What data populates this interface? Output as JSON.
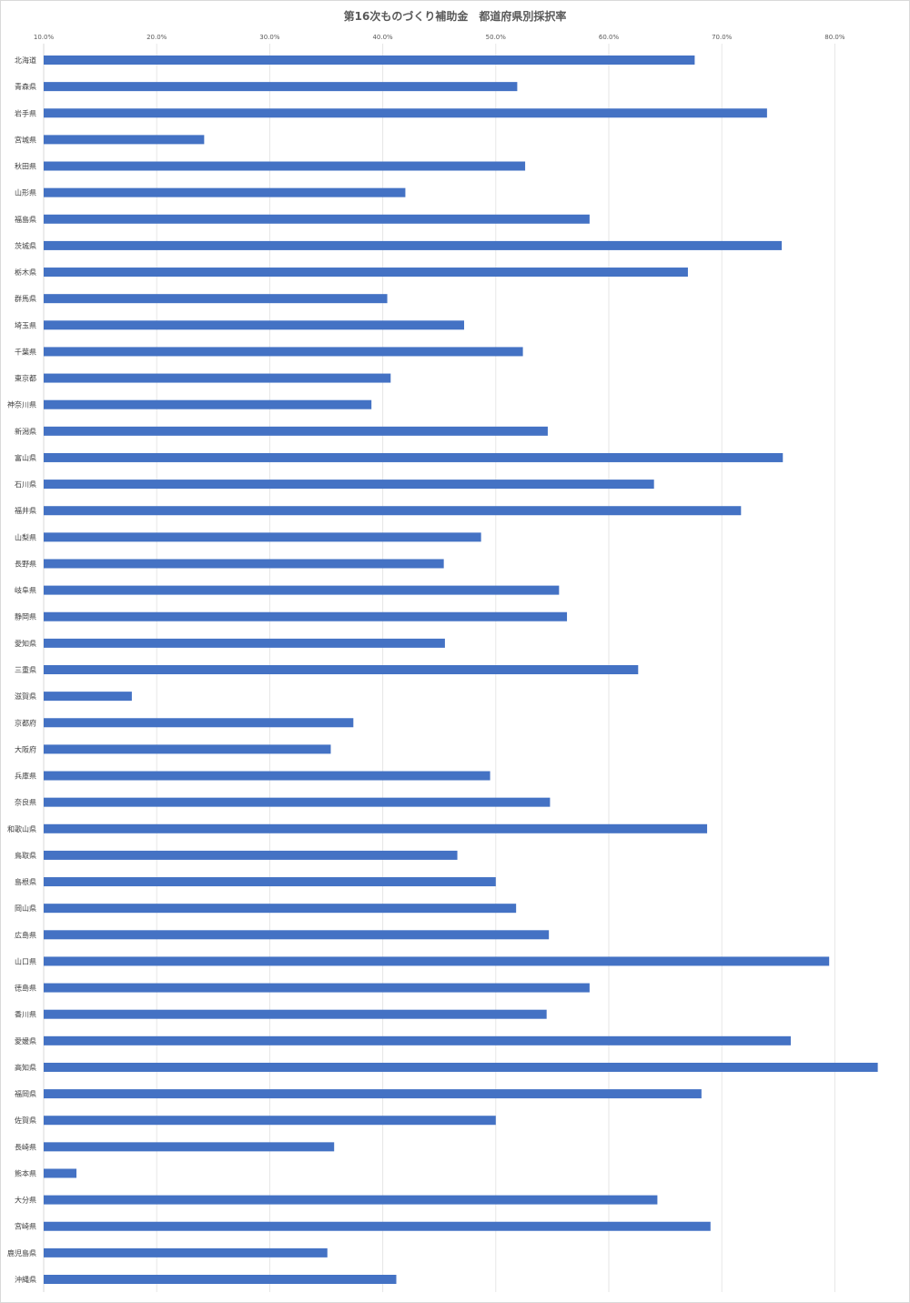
{
  "chart_data": {
    "type": "bar",
    "orientation": "horizontal",
    "title": "第16次ものづくり補助金　都道府県別採択率",
    "xlabel": "",
    "ylabel": "",
    "xlim": [
      10,
      83.8
    ],
    "x_ticks": [
      "10.0%",
      "20.0%",
      "30.0%",
      "40.0%",
      "50.0%",
      "60.0%",
      "70.0%",
      "80.0%"
    ],
    "x_tick_values": [
      10,
      20,
      30,
      40,
      50,
      60,
      70,
      80
    ],
    "grid": "vertical",
    "legend": "none",
    "bar_color": "#4472C4",
    "categories": [
      "北海道",
      "青森県",
      "岩手県",
      "宮城県",
      "秋田県",
      "山形県",
      "福島県",
      "茨城県",
      "栃木県",
      "群馬県",
      "埼玉県",
      "千葉県",
      "東京都",
      "神奈川県",
      "新潟県",
      "富山県",
      "石川県",
      "福井県",
      "山梨県",
      "長野県",
      "岐阜県",
      "静岡県",
      "愛知県",
      "三重県",
      "滋賀県",
      "京都府",
      "大阪府",
      "兵庫県",
      "奈良県",
      "和歌山県",
      "鳥取県",
      "島根県",
      "岡山県",
      "広島県",
      "山口県",
      "徳島県",
      "香川県",
      "愛媛県",
      "高知県",
      "福岡県",
      "佐賀県",
      "長崎県",
      "熊本県",
      "大分県",
      "宮崎県",
      "鹿児島県",
      "沖縄県"
    ],
    "values": [
      67.6,
      51.9,
      74.0,
      24.2,
      52.6,
      42.0,
      58.3,
      75.3,
      67.0,
      40.4,
      47.2,
      52.4,
      40.7,
      39.0,
      54.6,
      75.4,
      64.0,
      71.7,
      48.7,
      45.4,
      55.6,
      56.3,
      45.5,
      62.6,
      17.8,
      37.4,
      35.4,
      49.5,
      54.8,
      68.7,
      46.6,
      50.0,
      51.8,
      54.7,
      79.5,
      58.3,
      54.5,
      76.1,
      83.8,
      68.2,
      50.0,
      35.7,
      12.9,
      64.3,
      69.0,
      35.1,
      41.2
    ]
  }
}
